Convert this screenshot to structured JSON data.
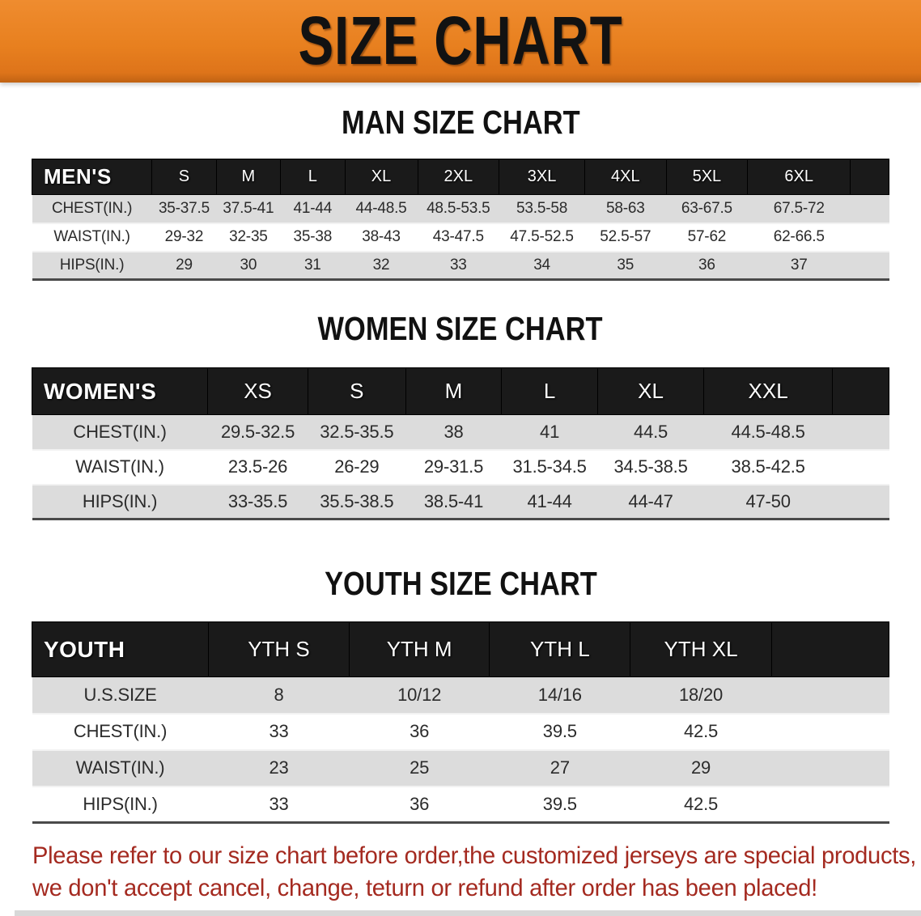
{
  "banner": {
    "title": "SIZE CHART"
  },
  "colors": {
    "banner_bg": "#E8801F",
    "banner_edge": "#C06313",
    "header_band": "#1A1A1A",
    "row_gray": "#DCDCDC",
    "disclaimer_red": "#A42A20"
  },
  "sections": [
    {
      "heading": "MAN SIZE CHART",
      "table": {
        "corner_label": "MEN'S",
        "columns": [
          "S",
          "M",
          "L",
          "XL",
          "2XL",
          "3XL",
          "4XL",
          "5XL",
          "6XL"
        ],
        "rows": [
          {
            "label": "CHEST(IN.)",
            "values": [
              "35-37.5",
              "37.5-41",
              "41-44",
              "44-48.5",
              "48.5-53.5",
              "53.5-58",
              "58-63",
              "63-67.5",
              "67.5-72"
            ]
          },
          {
            "label": "WAIST(IN.)",
            "values": [
              "29-32",
              "32-35",
              "35-38",
              "38-43",
              "43-47.5",
              "47.5-52.5",
              "52.5-57",
              "57-62",
              "62-66.5"
            ]
          },
          {
            "label": "HIPS(IN.)",
            "values": [
              "29",
              "30",
              "31",
              "32",
              "33",
              "34",
              "35",
              "36",
              "37"
            ]
          }
        ]
      }
    },
    {
      "heading": "WOMEN SIZE CHART",
      "table": {
        "corner_label": "WOMEN'S",
        "columns": [
          "XS",
          "S",
          "M",
          "L",
          "XL",
          "XXL"
        ],
        "rows": [
          {
            "label": "CHEST(IN.)",
            "values": [
              "29.5-32.5",
              "32.5-35.5",
              "38",
              "41",
              "44.5",
              "44.5-48.5"
            ]
          },
          {
            "label": "WAIST(IN.)",
            "values": [
              "23.5-26",
              "26-29",
              "29-31.5",
              "31.5-34.5",
              "34.5-38.5",
              "38.5-42.5"
            ]
          },
          {
            "label": "HIPS(IN.)",
            "values": [
              "33-35.5",
              "35.5-38.5",
              "38.5-41",
              "41-44",
              "44-47",
              "47-50"
            ]
          }
        ]
      }
    },
    {
      "heading": "YOUTH SIZE CHART",
      "table": {
        "corner_label": "YOUTH",
        "columns": [
          "YTH S",
          "YTH M",
          "YTH L",
          "YTH XL"
        ],
        "rows": [
          {
            "label": "U.S.SIZE",
            "values": [
              "8",
              "10/12",
              "14/16",
              "18/20"
            ]
          },
          {
            "label": "CHEST(IN.)",
            "values": [
              "33",
              "36",
              "39.5",
              "42.5"
            ]
          },
          {
            "label": "WAIST(IN.)",
            "values": [
              "23",
              "25",
              "27",
              "29"
            ]
          },
          {
            "label": "HIPS(IN.)",
            "values": [
              "33",
              "36",
              "39.5",
              "42.5"
            ]
          }
        ]
      }
    }
  ],
  "disclaimer": {
    "line1": "Please refer to our size chart before order,the customized jerseys are special products,",
    "line2": "we don't accept cancel, change, teturn or refund after order has been placed!"
  }
}
